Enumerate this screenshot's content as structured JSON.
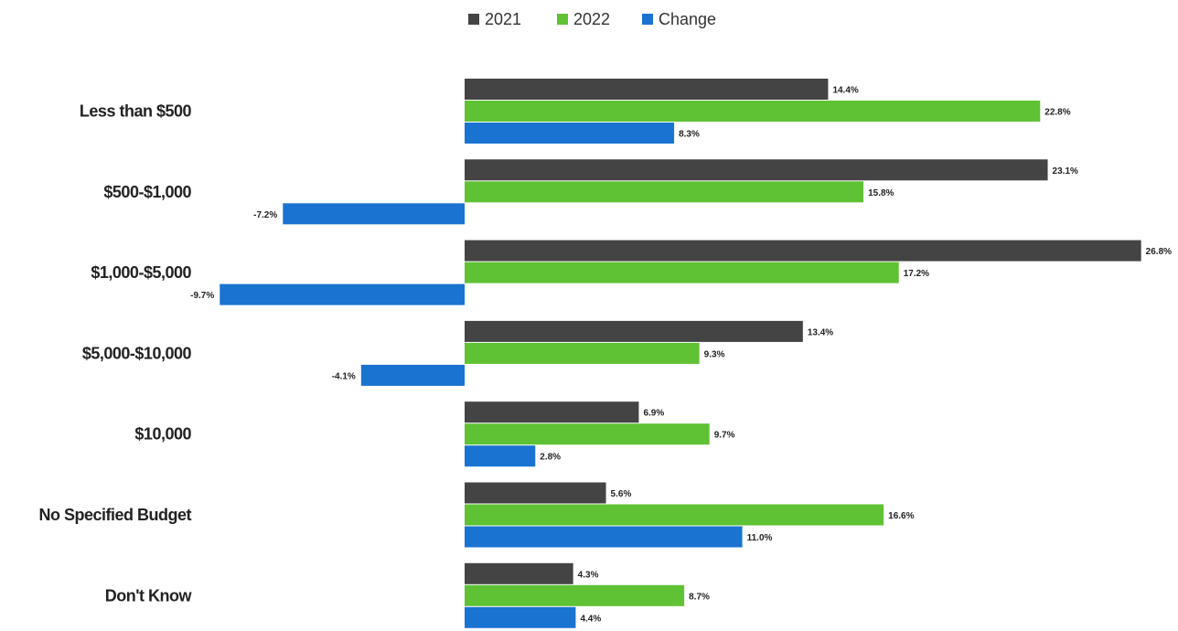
{
  "chart_data": {
    "type": "bar",
    "orientation": "horizontal",
    "categories": [
      "Less than $500",
      "$500-$1,000",
      "$1,000-$5,000",
      "$5,000-$10,000",
      "$10,000",
      "No Specified Budget",
      "Don't Know"
    ],
    "series": [
      {
        "name": "2021",
        "color": "#444444",
        "values": [
          14.4,
          23.1,
          26.8,
          13.4,
          6.9,
          5.6,
          4.3
        ],
        "labels": [
          "14.4%",
          "23.1%",
          "26.8%",
          "13.4%",
          "6.9%",
          "5.6%",
          "4.3%"
        ]
      },
      {
        "name": "2022",
        "color": "#5ec234",
        "values": [
          22.8,
          15.8,
          17.2,
          9.3,
          9.7,
          16.6,
          8.7
        ],
        "labels": [
          "22.8%",
          "15.8%",
          "17.2%",
          "9.3%",
          "9.7%",
          "16.6%",
          "8.7%"
        ]
      },
      {
        "name": "Change",
        "color": "#1a73d1",
        "values": [
          8.3,
          -7.2,
          -9.7,
          -4.1,
          2.8,
          11.0,
          4.4
        ],
        "labels": [
          "8.3%",
          "-7.2%",
          "-9.7%",
          "-4.1%",
          "2.8%",
          "11.0%",
          "4.4%"
        ]
      }
    ],
    "legend_position": "top-center",
    "grid": false
  }
}
